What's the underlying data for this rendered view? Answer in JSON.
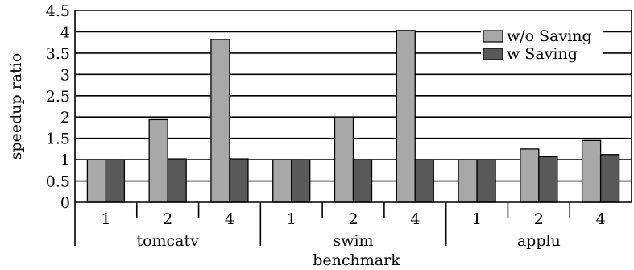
{
  "chart_data": {
    "type": "bar",
    "xlabel": "benchmark",
    "ylabel": "speedup ratio",
    "ylim": [
      0,
      4.5
    ],
    "yticks": [
      "0",
      "0.5",
      "1",
      "1.5",
      "2",
      "2.5",
      "3",
      "3.5",
      "4",
      "4.5"
    ],
    "grid": true,
    "legend_position": "top-right",
    "groups": [
      {
        "name": "tomcatv",
        "categories": [
          "1",
          "2",
          "4"
        ]
      },
      {
        "name": "swim",
        "categories": [
          "1",
          "2",
          "4"
        ]
      },
      {
        "name": "applu",
        "categories": [
          "1",
          "2",
          "4"
        ]
      }
    ],
    "series": [
      {
        "name": "w/o Saving",
        "color": "#a8a8a8",
        "values": [
          1.0,
          1.94,
          3.82,
          1.0,
          2.0,
          4.03,
          1.0,
          1.25,
          1.45
        ]
      },
      {
        "name": "w Saving",
        "color": "#595959",
        "values": [
          1.0,
          1.02,
          1.02,
          1.0,
          1.0,
          1.0,
          1.0,
          1.07,
          1.12
        ]
      }
    ]
  }
}
